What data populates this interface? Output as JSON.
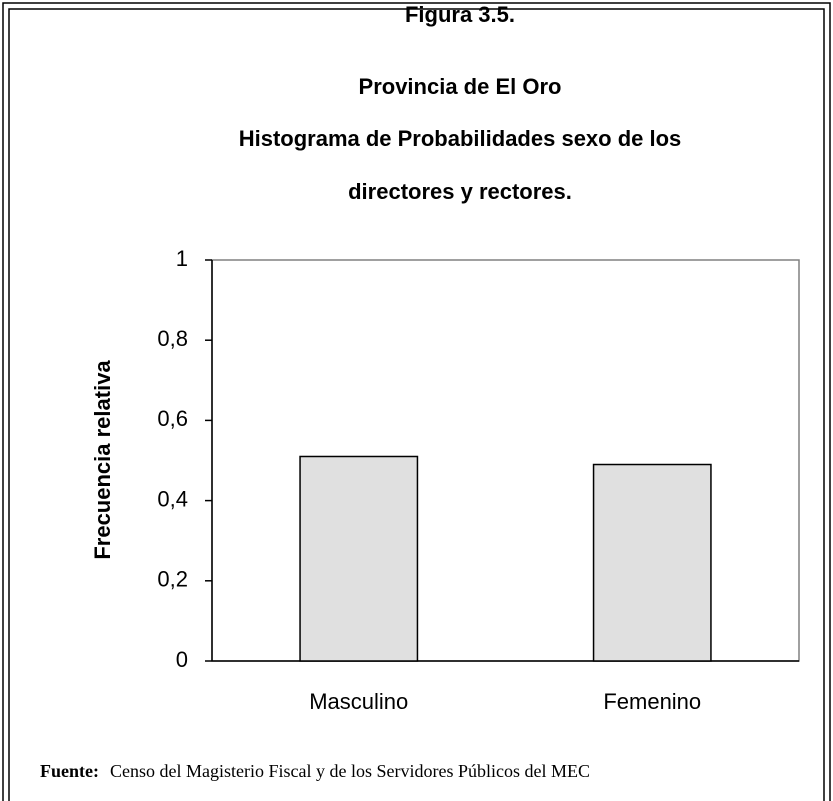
{
  "chart_data": {
    "type": "bar",
    "title": [
      "Figura 3.5.",
      "Provincia de El Oro",
      "Histograma de Probabilidades  sexo de los",
      "directores y  rectores."
    ],
    "y_label": "Frecuencia relativa",
    "categories": [
      "Masculino",
      "Femenino"
    ],
    "values": [
      0.51,
      0.49
    ],
    "color": "#e0e0e0",
    "ylim": [
      0,
      1
    ],
    "yticks": [
      0,
      {
        "value": 0.2,
        "label": "0,2"
      },
      {
        "value": 0.4,
        "label": "0,4"
      },
      {
        "value": 0.6,
        "label": "0,6"
      },
      {
        "value": 0.8,
        "label": "0,8"
      },
      1
    ],
    "grid": false,
    "source_label": "Fuente:",
    "source": "Censo del Magisterio Fiscal y de los Servidores Públicos del MEC"
  }
}
